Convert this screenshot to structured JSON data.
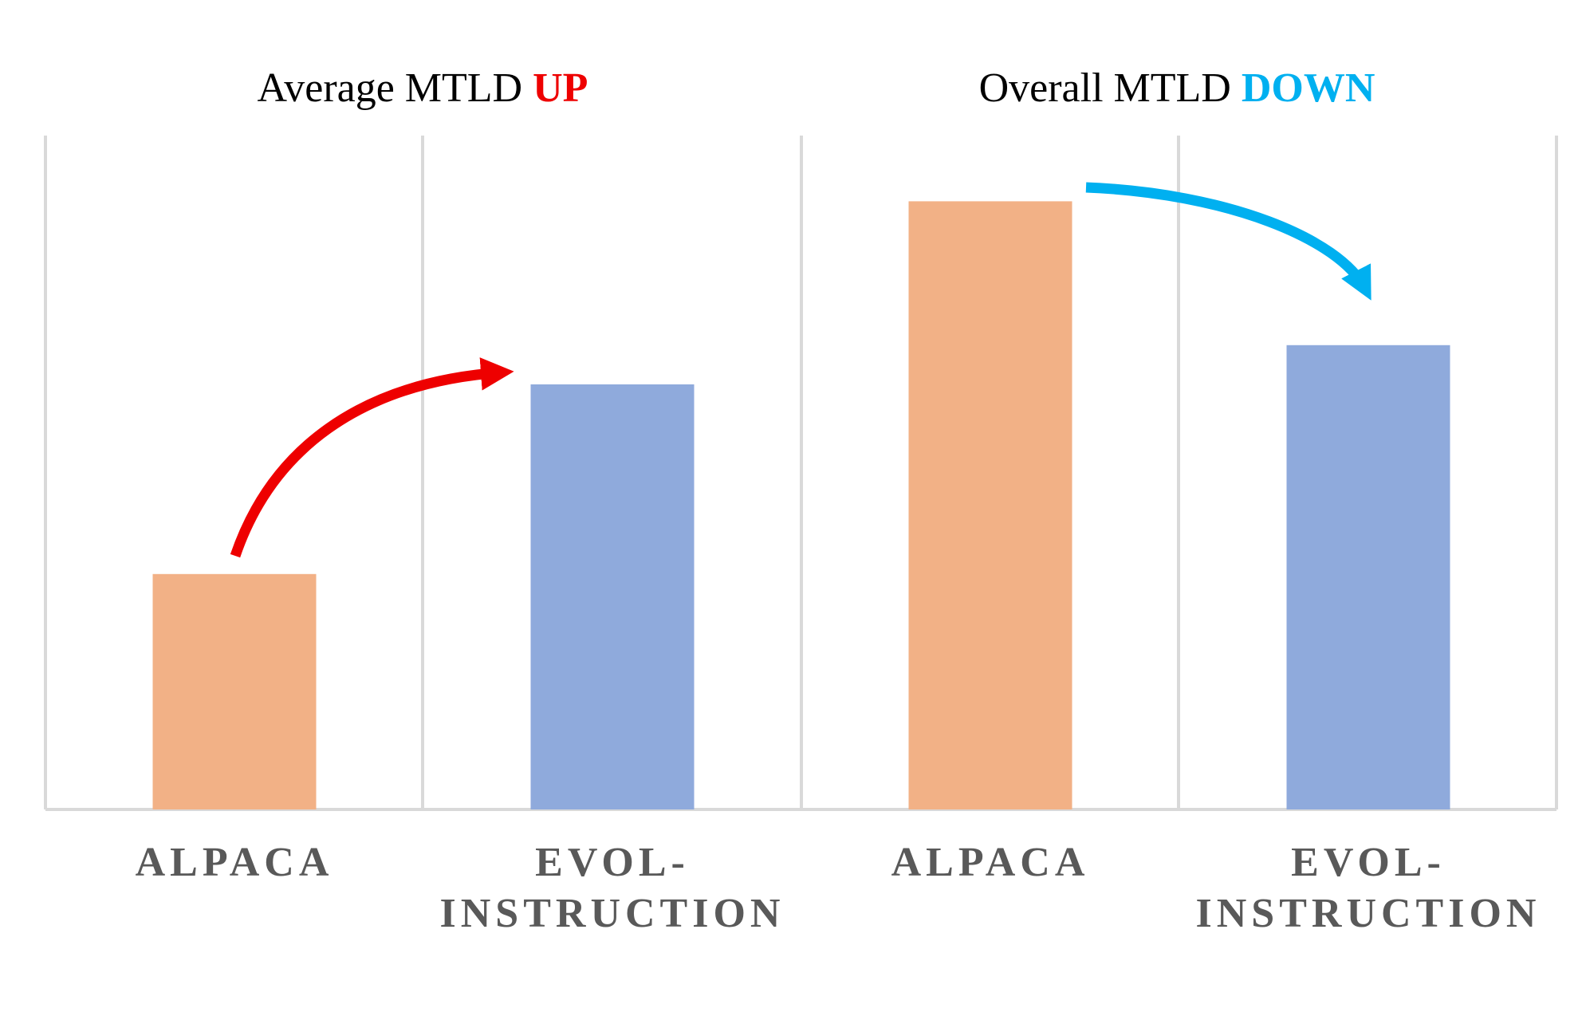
{
  "panels": [
    {
      "title": "Average MTLD ",
      "title_highlight": "UP",
      "highlight_color": "#ee0000",
      "arrow_color": "#ee0000"
    },
    {
      "title": "Overall MTLD ",
      "title_highlight": "DOWN",
      "highlight_color": "#00b0f0",
      "arrow_color": "#00b0f0"
    }
  ],
  "colors": {
    "alpaca": "#f2b186",
    "evol": "#8faadc",
    "grid": "#d9d9d9",
    "label": "#595959"
  },
  "chart_data": [
    {
      "type": "bar",
      "title": "Average MTLD UP",
      "categories": [
        [
          "ALPACA"
        ],
        [
          "EVOL-",
          "INSTRUCTION"
        ]
      ],
      "values": [
        0.36,
        0.65
      ],
      "ylim": [
        0,
        1
      ],
      "grid": "vertical category separators"
    },
    {
      "type": "bar",
      "title": "Overall MTLD DOWN",
      "categories": [
        [
          "ALPACA"
        ],
        [
          "EVOL-",
          "INSTRUCTION"
        ]
      ],
      "values": [
        0.93,
        0.71
      ],
      "ylim": [
        0,
        1
      ],
      "grid": "vertical category separators"
    }
  ]
}
